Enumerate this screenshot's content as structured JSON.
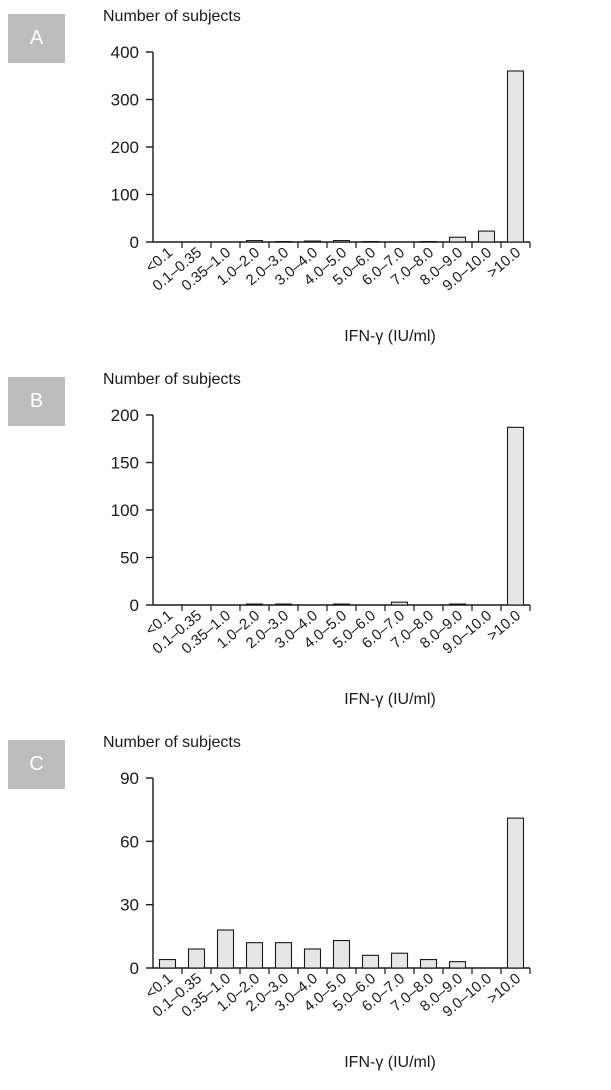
{
  "badge_color": "#bdbdbd",
  "bar_fill": "#e6e6e6",
  "bar_stroke": "#1a1a1a",
  "chart_data": [
    {
      "type": "bar",
      "panel_label": "A",
      "ylabel": "Number of subjects",
      "xlabel": "IFN-γ (IU/ml)",
      "ylim": [
        0,
        400
      ],
      "yticks": [
        0,
        100,
        200,
        300,
        400
      ],
      "categories": [
        "<0.1",
        "0.1–0.35",
        "0.35–1.0",
        "1.0–2.0",
        "2.0–3.0",
        "3.0–4.0",
        "4.0–5.0",
        "5.0–6.0",
        "6.0–7.0",
        "7.0–8.0",
        "8.0–9.0",
        "9.0–10.0",
        ">10.0"
      ],
      "values": [
        0,
        0,
        0,
        3,
        1,
        2,
        3,
        1,
        0,
        1,
        10,
        23,
        360
      ]
    },
    {
      "type": "bar",
      "panel_label": "B",
      "ylabel": "Number of subjects",
      "xlabel": "IFN-γ (IU/ml)",
      "ylim": [
        0,
        200
      ],
      "yticks": [
        0,
        50,
        100,
        150,
        200
      ],
      "categories": [
        "<0.1",
        "0.1–0.35",
        "0.35–1.0",
        "1.0–2.0",
        "2.0–3.0",
        "3.0–4.0",
        "4.0–5.0",
        "5.0–6.0",
        "6.0–7.0",
        "7.0–8.0",
        "8.0–9.0",
        "9.0–10.0",
        ">10.0"
      ],
      "values": [
        0,
        0,
        0,
        1,
        1,
        0,
        1,
        0,
        3,
        0,
        1,
        0,
        187
      ]
    },
    {
      "type": "bar",
      "panel_label": "C",
      "ylabel": "Number of subjects",
      "xlabel": "IFN-γ (IU/ml)",
      "ylim": [
        0,
        90
      ],
      "yticks": [
        0,
        30,
        60,
        90
      ],
      "categories": [
        "<0.1",
        "0.1–0.35",
        "0.35–1.0",
        "1.0–2.0",
        "2.0–3.0",
        "3.0–4.0",
        "4.0–5.0",
        "5.0–6.0",
        "6.0–7.0",
        "7.0–8.0",
        "8.0–9.0",
        "9.0–10.0",
        ">10.0"
      ],
      "values": [
        4,
        9,
        18,
        12,
        12,
        9,
        13,
        6,
        7,
        4,
        3,
        0,
        71
      ]
    }
  ]
}
